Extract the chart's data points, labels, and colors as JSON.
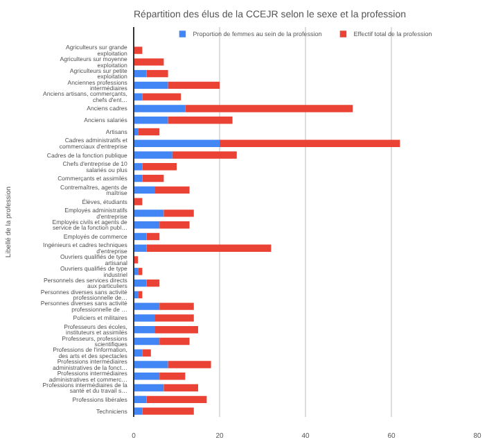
{
  "chart_data": {
    "type": "bar",
    "orientation": "horizontal",
    "stacked": true,
    "title": "Répartition des élus de la CCEJR selon le sexe et la profession",
    "ylabel": "Libellé de la profession",
    "categories": [
      "Agriculteurs sur grande exploitation",
      "Agriculteurs sur moyenne exploitation",
      "Agriculteurs sur petite exploitation",
      "Anciennes professions intermédiaires",
      "Anciens artisans, commerçants, chefs d'ent…",
      "Anciens cadres",
      "Anciens salariés",
      "Artisans",
      "Cadres administratifs et commerciaux d'entreprise",
      "Cadres de la fonction publique",
      "Chefs d'entreprise de 10 salariés ou plus",
      "Commerçants et assimilés",
      "Contremaîtres, agents de maîtrise",
      "Élèves, étudiants",
      "Employés administratifs d'entreprise",
      "Employés civils et agents de service de la fonction publ…",
      "Employés de commerce",
      "Ingénieurs et cadres techniques d'entreprise",
      "Ouvriers qualifiés de type artisanal",
      "Ouvriers qualifiés de type industriel",
      "Personnels des services directs aux particuliers",
      "Personnes diverses sans activité professionnelle de…",
      "Personnes diverses sans activité professionnelle de …",
      "Policiers et militaires",
      "Professeurs des écoles, instituteurs et assimilés",
      "Professeurs, professions scientifiques",
      "Professions de l'information, des arts et des spectacles",
      "Professions intermédiaires administratives de la fonct…",
      "Professions intermédiaires administratives et commerc…",
      "Professions intermédiaires de la santé et du travail s…",
      "Professions libérales",
      "Techniciens"
    ],
    "series": [
      {
        "name": "Proportion de femmes au sein de la profession",
        "color": "#4285f4",
        "values": [
          0,
          0,
          3,
          8,
          2,
          12,
          8,
          1,
          20,
          9,
          2,
          2,
          5,
          0,
          7,
          6,
          3,
          3,
          0,
          1,
          3,
          1,
          6,
          5,
          5,
          6,
          2,
          8,
          6,
          7,
          3,
          2
        ]
      },
      {
        "name": "Effectif total de la profession",
        "color": "#ea4335",
        "values": [
          2,
          7,
          5,
          12,
          9,
          39,
          15,
          5,
          42,
          15,
          8,
          5,
          8,
          2,
          7,
          7,
          3,
          29,
          1,
          1,
          3,
          1,
          8,
          9,
          10,
          7,
          2,
          10,
          6,
          8,
          14,
          12
        ]
      }
    ],
    "xlim": [
      0,
      80
    ],
    "xticks": [
      0,
      20,
      40,
      60,
      80
    ],
    "grid": "x",
    "legend": "top"
  }
}
